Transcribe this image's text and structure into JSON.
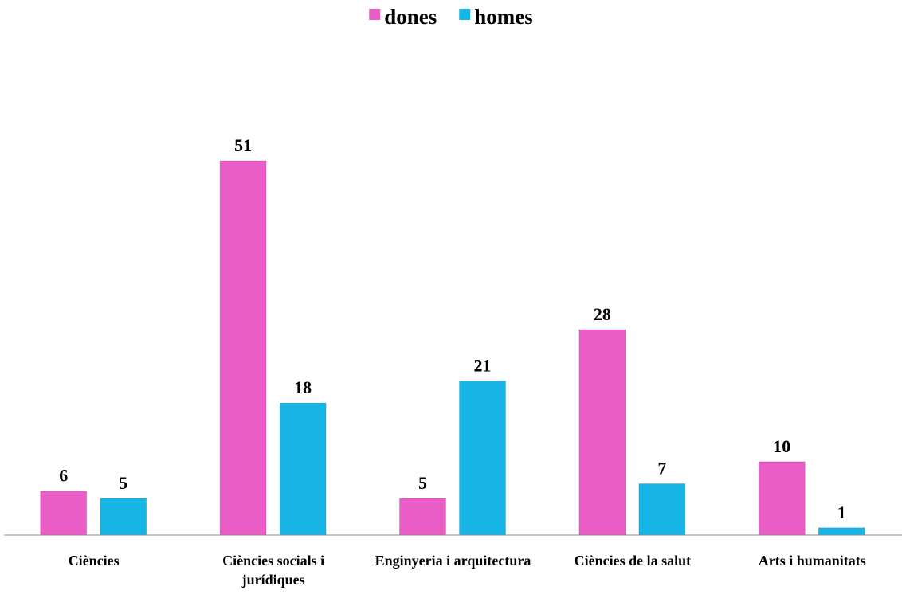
{
  "chart_data": {
    "type": "bar",
    "categories": [
      "Ciències",
      "Ciències socials i jurídiques",
      "Enginyeria i arquitectura",
      "Ciències de la salut",
      "Arts i humanitats"
    ],
    "series": [
      {
        "name": "dones",
        "color": "#ea5cc6",
        "values": [
          6,
          51,
          5,
          28,
          10
        ]
      },
      {
        "name": "homes",
        "color": "#17b5e6",
        "values": [
          5,
          18,
          21,
          7,
          1
        ]
      }
    ],
    "legend": "top"
  }
}
